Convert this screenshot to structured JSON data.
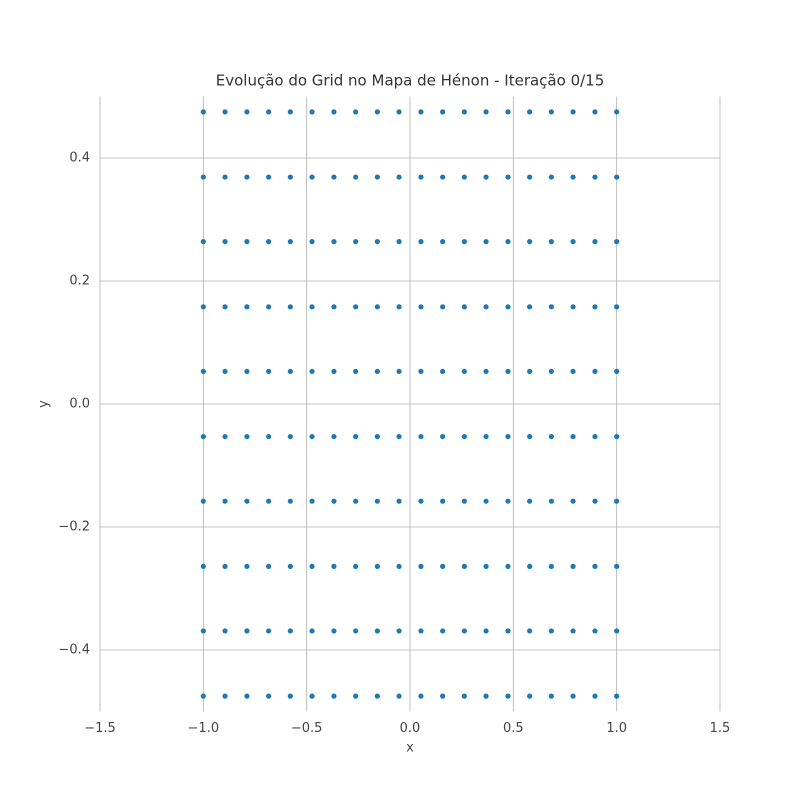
{
  "chart_data": {
    "type": "scatter",
    "title": "Evolução do Grid no Mapa de Hénon - Iteração 0/15",
    "xlabel": "x",
    "ylabel": "y",
    "color": "#1f77b4",
    "grid": true,
    "xlim": [
      -1.5,
      1.5
    ],
    "ylim": [
      -0.5,
      0.5
    ],
    "xticks": [
      {
        "value": -1.5,
        "label": "−1.5"
      },
      {
        "value": -1.0,
        "label": "−1.0"
      },
      {
        "value": -0.5,
        "label": "−0.5"
      },
      {
        "value": 0,
        "label": "0.0"
      },
      0.5,
      {
        "value": 1.0,
        "label": "1.0"
      },
      1.5
    ],
    "yticks": [
      {
        "value": -0.4,
        "label": "−0.4"
      },
      {
        "value": -0.2,
        "label": "−0.2"
      },
      {
        "value": 0,
        "label": "0.0"
      },
      0.2,
      0.4
    ],
    "x": [
      -1,
      -0.895,
      -0.789,
      -0.684,
      -0.579,
      -0.474,
      -0.368,
      -0.263,
      -0.158,
      -0.053,
      0.053,
      0.158,
      0.263,
      0.368,
      0.474,
      0.579,
      0.684,
      0.789,
      0.895,
      1
    ],
    "series": [
      {
        "values": [
          -0.475,
          -0.475,
          -0.475,
          -0.475,
          -0.475,
          -0.475,
          -0.475,
          -0.475,
          -0.475,
          -0.475,
          -0.475,
          -0.475,
          -0.475,
          -0.475,
          -0.475,
          -0.475,
          -0.475,
          -0.475,
          -0.475,
          -0.475
        ]
      },
      {
        "values": [
          -0.369,
          -0.369,
          -0.369,
          -0.369,
          -0.369,
          -0.369,
          -0.369,
          -0.369,
          -0.369,
          -0.369,
          -0.369,
          -0.369,
          -0.369,
          -0.369,
          -0.369,
          -0.369,
          -0.369,
          -0.369,
          -0.369,
          -0.369
        ]
      },
      {
        "values": [
          -0.264,
          -0.264,
          -0.264,
          -0.264,
          -0.264,
          -0.264,
          -0.264,
          -0.264,
          -0.264,
          -0.264,
          -0.264,
          -0.264,
          -0.264,
          -0.264,
          -0.264,
          -0.264,
          -0.264,
          -0.264,
          -0.264,
          -0.264
        ]
      },
      {
        "values": [
          -0.158,
          -0.158,
          -0.158,
          -0.158,
          -0.158,
          -0.158,
          -0.158,
          -0.158,
          -0.158,
          -0.158,
          -0.158,
          -0.158,
          -0.158,
          -0.158,
          -0.158,
          -0.158,
          -0.158,
          -0.158,
          -0.158,
          -0.158
        ]
      },
      {
        "values": [
          -0.053,
          -0.053,
          -0.053,
          -0.053,
          -0.053,
          -0.053,
          -0.053,
          -0.053,
          -0.053,
          -0.053,
          -0.053,
          -0.053,
          -0.053,
          -0.053,
          -0.053,
          -0.053,
          -0.053,
          -0.053,
          -0.053,
          -0.053
        ]
      },
      {
        "values": [
          0.053,
          0.053,
          0.053,
          0.053,
          0.053,
          0.053,
          0.053,
          0.053,
          0.053,
          0.053,
          0.053,
          0.053,
          0.053,
          0.053,
          0.053,
          0.053,
          0.053,
          0.053,
          0.053,
          0.053
        ]
      },
      {
        "values": [
          0.158,
          0.158,
          0.158,
          0.158,
          0.158,
          0.158,
          0.158,
          0.158,
          0.158,
          0.158,
          0.158,
          0.158,
          0.158,
          0.158,
          0.158,
          0.158,
          0.158,
          0.158,
          0.158,
          0.158
        ]
      },
      {
        "values": [
          0.264,
          0.264,
          0.264,
          0.264,
          0.264,
          0.264,
          0.264,
          0.264,
          0.264,
          0.264,
          0.264,
          0.264,
          0.264,
          0.264,
          0.264,
          0.264,
          0.264,
          0.264,
          0.264,
          0.264
        ]
      },
      {
        "values": [
          0.369,
          0.369,
          0.369,
          0.369,
          0.369,
          0.369,
          0.369,
          0.369,
          0.369,
          0.369,
          0.369,
          0.369,
          0.369,
          0.369,
          0.369,
          0.369,
          0.369,
          0.369,
          0.369,
          0.369
        ]
      },
      {
        "values": [
          0.475,
          0.475,
          0.475,
          0.475,
          0.475,
          0.475,
          0.475,
          0.475,
          0.475,
          0.475,
          0.475,
          0.475,
          0.475,
          0.475,
          0.475,
          0.475,
          0.475,
          0.475,
          0.475,
          0.475
        ]
      }
    ]
  }
}
